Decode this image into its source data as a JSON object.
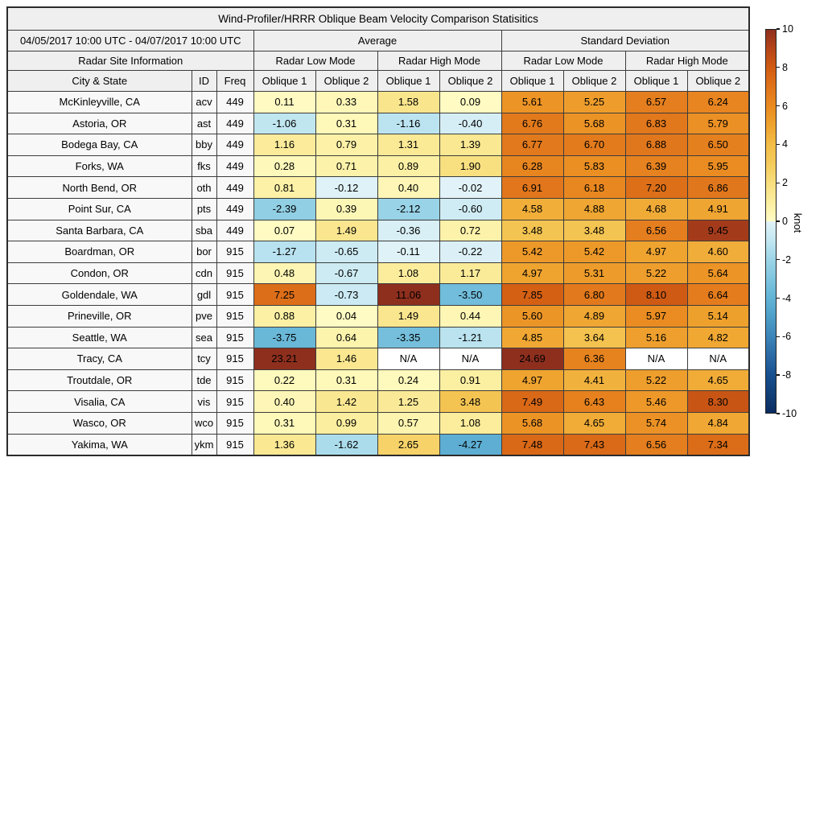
{
  "figure": {
    "title": "Wind-Profiler/HRRR Oblique Beam Velocity Comparison Statisitics"
  },
  "table": {
    "period": "04/05/2017 10:00 UTC - 04/07/2017 10:00 UTC",
    "group_average": "Average",
    "group_std": "Standard Deviation",
    "site_info": "Radar Site Information",
    "mode_headers": [
      "Radar Low Mode",
      "Radar High Mode",
      "Radar Low Mode",
      "Radar High Mode"
    ],
    "site_headers": [
      "City & State",
      "ID",
      "Freq"
    ],
    "oblique_headers": [
      "Oblique 1",
      "Oblique 2",
      "Oblique 1",
      "Oblique 2",
      "Oblique 1",
      "Oblique 2",
      "Oblique 1",
      "Oblique 2"
    ]
  },
  "colorbar": {
    "label": "knot",
    "range": [
      -10,
      10
    ],
    "ticks": [
      "10",
      "8",
      "6",
      "4",
      "2",
      "0",
      "-2",
      "-4",
      "-6",
      "-8",
      "-10"
    ],
    "na_color": "#ffffff",
    "stops": [
      [
        -10,
        "#0A2C61"
      ],
      [
        -9,
        "#113F77"
      ],
      [
        -8,
        "#17508F"
      ],
      [
        -7,
        "#2B6AA4"
      ],
      [
        -6,
        "#3D85BA"
      ],
      [
        -5,
        "#4E9FC8"
      ],
      [
        -4,
        "#63B4D6"
      ],
      [
        -3,
        "#7FC5DF"
      ],
      [
        -2,
        "#9DD5E8"
      ],
      [
        -1,
        "#C2E7F1"
      ],
      [
        -0.001,
        "#E2F3F8"
      ],
      [
        0.001,
        "#FFFCC5"
      ],
      [
        1,
        "#FBEE9F"
      ],
      [
        2,
        "#F8DE7E"
      ],
      [
        3,
        "#F5CB5C"
      ],
      [
        4,
        "#F3BD47"
      ],
      [
        5,
        "#EFA32F"
      ],
      [
        6,
        "#EA8B21"
      ],
      [
        7,
        "#E0741B"
      ],
      [
        8,
        "#D25C13"
      ],
      [
        9,
        "#B54519"
      ],
      [
        10,
        "#8E2F1E"
      ]
    ]
  },
  "chart_data": {
    "type": "heatmap",
    "title": "Wind-Profiler/HRRR Oblique Beam Velocity Comparison Statisitics",
    "unit": "knot",
    "value_range": [
      -10,
      10
    ],
    "columns": [
      "City & State",
      "ID",
      "Freq",
      "Average Radar Low Mode Oblique 1",
      "Average Radar Low Mode Oblique 2",
      "Average Radar High Mode Oblique 1",
      "Average Radar High Mode Oblique 2",
      "Standard Deviation Radar Low Mode Oblique 1",
      "Standard Deviation Radar Low Mode Oblique 2",
      "Standard Deviation Radar High Mode Oblique 1",
      "Standard Deviation Radar High Mode Oblique 2"
    ],
    "rows": [
      {
        "city": "McKinleyville, CA",
        "id": "acv",
        "freq": "449",
        "values": [
          "0.11",
          "0.33",
          "1.58",
          "0.09",
          "5.61",
          "5.25",
          "6.57",
          "6.24"
        ]
      },
      {
        "city": "Astoria, OR",
        "id": "ast",
        "freq": "449",
        "values": [
          "-1.06",
          "0.31",
          "-1.16",
          "-0.40",
          "6.76",
          "5.68",
          "6.83",
          "5.79"
        ]
      },
      {
        "city": "Bodega Bay, CA",
        "id": "bby",
        "freq": "449",
        "values": [
          "1.16",
          "0.79",
          "1.31",
          "1.39",
          "6.77",
          "6.70",
          "6.88",
          "6.50"
        ]
      },
      {
        "city": "Forks, WA",
        "id": "fks",
        "freq": "449",
        "values": [
          "0.28",
          "0.71",
          "0.89",
          "1.90",
          "6.28",
          "5.83",
          "6.39",
          "5.95"
        ]
      },
      {
        "city": "North Bend, OR",
        "id": "oth",
        "freq": "449",
        "values": [
          "0.81",
          "-0.12",
          "0.40",
          "-0.02",
          "6.91",
          "6.18",
          "7.20",
          "6.86"
        ]
      },
      {
        "city": "Point Sur, CA",
        "id": "pts",
        "freq": "449",
        "values": [
          "-2.39",
          "0.39",
          "-2.12",
          "-0.60",
          "4.58",
          "4.88",
          "4.68",
          "4.91"
        ]
      },
      {
        "city": "Santa Barbara, CA",
        "id": "sba",
        "freq": "449",
        "values": [
          "0.07",
          "1.49",
          "-0.36",
          "0.72",
          "3.48",
          "3.48",
          "6.56",
          "9.45"
        ]
      },
      {
        "city": "Boardman, OR",
        "id": "bor",
        "freq": "915",
        "values": [
          "-1.27",
          "-0.65",
          "-0.11",
          "-0.22",
          "5.42",
          "5.42",
          "4.97",
          "4.60"
        ]
      },
      {
        "city": "Condon, OR",
        "id": "cdn",
        "freq": "915",
        "values": [
          "0.48",
          "-0.67",
          "1.08",
          "1.17",
          "4.97",
          "5.31",
          "5.22",
          "5.64"
        ]
      },
      {
        "city": "Goldendale, WA",
        "id": "gdl",
        "freq": "915",
        "values": [
          "7.25",
          "-0.73",
          "11.06",
          "-3.50",
          "7.85",
          "6.80",
          "8.10",
          "6.64"
        ]
      },
      {
        "city": "Prineville, OR",
        "id": "pve",
        "freq": "915",
        "values": [
          "0.88",
          "0.04",
          "1.49",
          "0.44",
          "5.60",
          "4.89",
          "5.97",
          "5.14"
        ]
      },
      {
        "city": "Seattle, WA",
        "id": "sea",
        "freq": "915",
        "values": [
          "-3.75",
          "0.64",
          "-3.35",
          "-1.21",
          "4.85",
          "3.64",
          "5.16",
          "4.82"
        ]
      },
      {
        "city": "Tracy, CA",
        "id": "tcy",
        "freq": "915",
        "values": [
          "23.21",
          "1.46",
          "N/A",
          "N/A",
          "24.69",
          "6.36",
          "N/A",
          "N/A"
        ]
      },
      {
        "city": "Troutdale, OR",
        "id": "tde",
        "freq": "915",
        "values": [
          "0.22",
          "0.31",
          "0.24",
          "0.91",
          "4.97",
          "4.41",
          "5.22",
          "4.65"
        ]
      },
      {
        "city": "Visalia, CA",
        "id": "vis",
        "freq": "915",
        "values": [
          "0.40",
          "1.42",
          "1.25",
          "3.48",
          "7.49",
          "6.43",
          "5.46",
          "8.30"
        ]
      },
      {
        "city": "Wasco, OR",
        "id": "wco",
        "freq": "915",
        "values": [
          "0.31",
          "0.99",
          "0.57",
          "1.08",
          "5.68",
          "4.65",
          "5.74",
          "4.84"
        ]
      },
      {
        "city": "Yakima, WA",
        "id": "ykm",
        "freq": "915",
        "values": [
          "1.36",
          "-1.62",
          "2.65",
          "-4.27",
          "7.48",
          "7.43",
          "6.56",
          "7.34"
        ]
      }
    ]
  }
}
